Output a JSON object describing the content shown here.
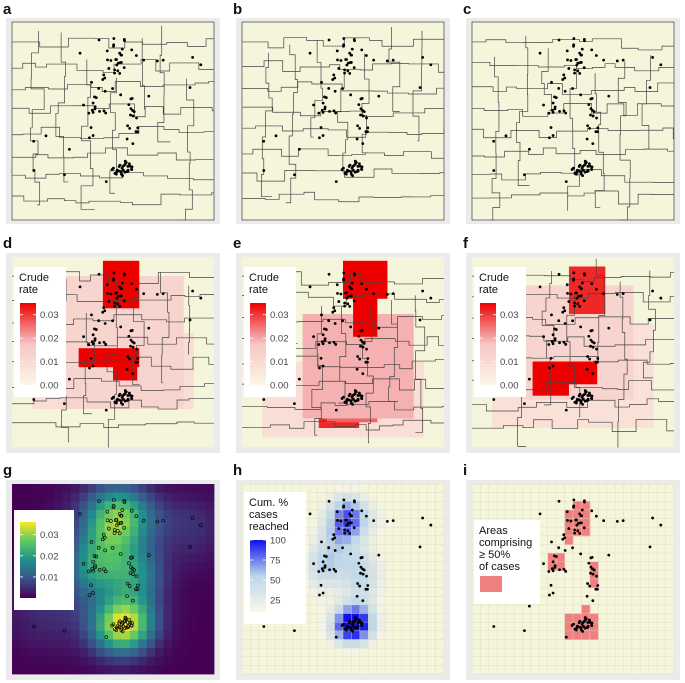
{
  "figure": {
    "panel_labels": [
      "a",
      "b",
      "c",
      "d",
      "e",
      "f",
      "g",
      "h",
      "i"
    ]
  },
  "chart_data": [
    {
      "panel": "a",
      "type": "scatter",
      "title": "",
      "xlabel": "",
      "ylabel": "",
      "layer": "case locations over irregular spatial units",
      "legend": null
    },
    {
      "panel": "b",
      "type": "scatter",
      "title": "",
      "xlabel": "",
      "ylabel": "",
      "layer": "case locations over irregular spatial units",
      "legend": null
    },
    {
      "panel": "c",
      "type": "scatter",
      "title": "",
      "xlabel": "",
      "ylabel": "",
      "layer": "case locations over irregular spatial units",
      "legend": null
    },
    {
      "panel": "d",
      "type": "heatmap",
      "title": "",
      "xlabel": "",
      "ylabel": "",
      "legend": {
        "title": [
          "Crude",
          "rate"
        ],
        "ticks": [
          "0.03",
          "0.02",
          "0.01",
          "0.00"
        ],
        "tick_values": [
          0.03,
          0.02,
          0.01,
          0.0
        ],
        "range": [
          0,
          0.035
        ],
        "colors": [
          "#fbf7e6",
          "#f6c5c5",
          "#ee0000"
        ]
      }
    },
    {
      "panel": "e",
      "type": "heatmap",
      "title": "",
      "xlabel": "",
      "ylabel": "",
      "legend": {
        "title": [
          "Crude",
          "rate"
        ],
        "ticks": [
          "0.03",
          "0.02",
          "0.01",
          "0.00"
        ],
        "tick_values": [
          0.03,
          0.02,
          0.01,
          0.0
        ],
        "range": [
          0,
          0.035
        ],
        "colors": [
          "#fbf7e6",
          "#f6c5c5",
          "#ee0000"
        ]
      }
    },
    {
      "panel": "f",
      "type": "heatmap",
      "title": "",
      "xlabel": "",
      "ylabel": "",
      "legend": {
        "title": [
          "Crude",
          "rate"
        ],
        "ticks": [
          "0.03",
          "0.02",
          "0.01",
          "0.00"
        ],
        "tick_values": [
          0.03,
          0.02,
          0.01,
          0.0
        ],
        "range": [
          0,
          0.035
        ],
        "colors": [
          "#fbf7e6",
          "#f6c5c5",
          "#ee0000"
        ]
      }
    },
    {
      "panel": "g",
      "type": "heatmap",
      "title": "",
      "xlabel": "",
      "ylabel": "",
      "legend": {
        "title": [],
        "ticks": [
          "0.03",
          "0.02",
          "0.01"
        ],
        "tick_values": [
          0.03,
          0.02,
          0.01
        ],
        "range": [
          0,
          0.036
        ],
        "colors": [
          "#440154",
          "#3b528b",
          "#21908d",
          "#5dc963",
          "#fde725"
        ]
      }
    },
    {
      "panel": "h",
      "type": "heatmap",
      "title": "",
      "xlabel": "",
      "ylabel": "",
      "legend": {
        "title": [
          "Cum. %",
          "cases",
          "reached"
        ],
        "ticks": [
          "100",
          "75",
          "50",
          "25"
        ],
        "tick_values": [
          100,
          75,
          50,
          25
        ],
        "range": [
          10,
          100
        ],
        "colors": [
          "#fbf7e6",
          "#bcd6ea",
          "#1010ee"
        ]
      }
    },
    {
      "panel": "i",
      "type": "heatmap",
      "title": "",
      "xlabel": "",
      "ylabel": "",
      "legend": {
        "title": [
          "Areas",
          "comprising",
          "≥ 50%",
          "of cases"
        ],
        "swatch": "#f08080"
      }
    }
  ],
  "colors": {
    "background_fill": "#f5f5dc",
    "panel_frame": "#ebebeb",
    "border": "#555555",
    "point": "#000000",
    "high_rate": "#ee0000",
    "mid_rate": "#f6c5c5",
    "cum_blue": "#1010ee"
  }
}
